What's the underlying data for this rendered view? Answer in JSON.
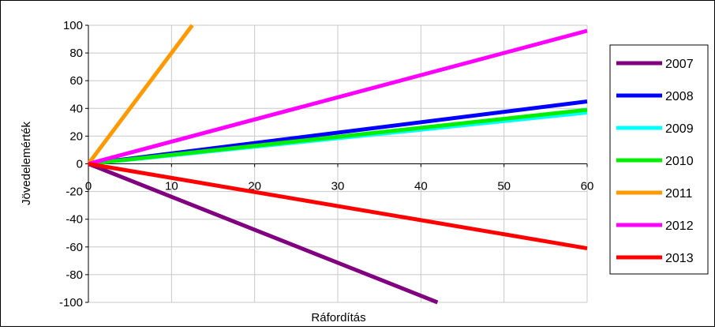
{
  "chart_data": {
    "type": "line",
    "title": "",
    "xlabel": "Ráfordítás",
    "ylabel": "Jövedelemérték",
    "xlim": [
      0,
      60
    ],
    "ylim": [
      -100,
      100
    ],
    "x_ticks": [
      0,
      10,
      20,
      30,
      40,
      50,
      60
    ],
    "y_ticks": [
      100,
      80,
      60,
      40,
      20,
      0,
      -20,
      -40,
      -60,
      -80,
      -100
    ],
    "grid": true,
    "legend_position": "right",
    "series": [
      {
        "name": "2007",
        "color": "#800080",
        "x": [
          0,
          42
        ],
        "y": [
          0,
          -100
        ]
      },
      {
        "name": "2008",
        "color": "#0000ff",
        "x": [
          0,
          60
        ],
        "y": [
          0,
          45
        ]
      },
      {
        "name": "2009",
        "color": "#00ffff",
        "x": [
          0,
          60
        ],
        "y": [
          0,
          37
        ]
      },
      {
        "name": "2010",
        "color": "#00ee00",
        "x": [
          0,
          60
        ],
        "y": [
          0,
          39
        ]
      },
      {
        "name": "2011",
        "color": "#ff9900",
        "x": [
          0,
          12.5
        ],
        "y": [
          0,
          100
        ]
      },
      {
        "name": "2012",
        "color": "#ff00ff",
        "x": [
          0,
          60
        ],
        "y": [
          0,
          96
        ]
      },
      {
        "name": "2013",
        "color": "#ff0000",
        "x": [
          0,
          60
        ],
        "y": [
          0,
          -61
        ]
      }
    ]
  }
}
